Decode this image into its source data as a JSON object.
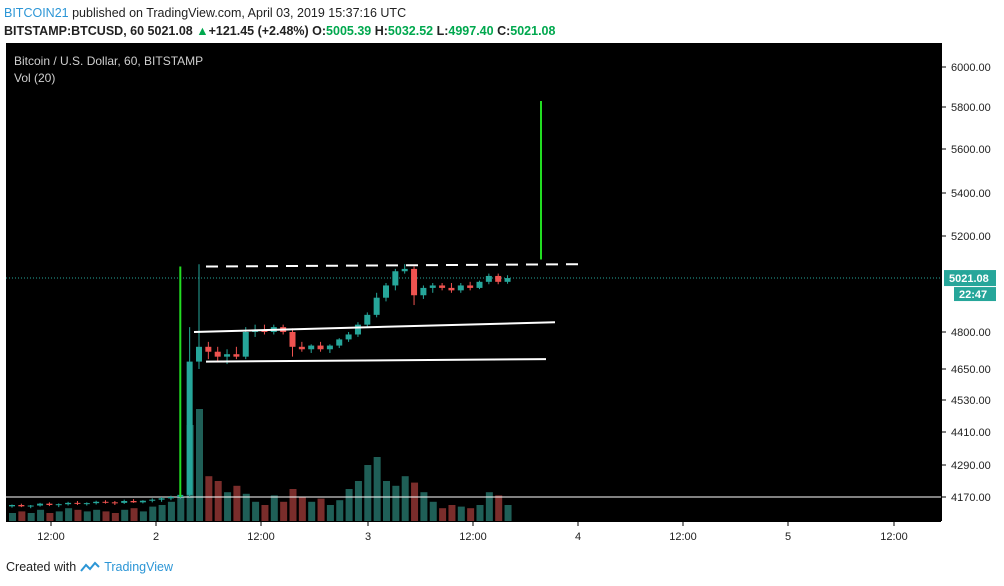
{
  "header": {
    "user": "BITCOIN21",
    "published": " published on TradingView.com, April 03, 2019 15:37:16 UTC",
    "symbol": "BITSTAMP:BTCUSD, 60",
    "last": "5021.08",
    "change": "+121.45 (+2.48%)",
    "open_label": "O:",
    "open": "5005.39",
    "high_label": "H:",
    "high": "5032.52",
    "low_label": "L:",
    "low": "4997.40",
    "close_label": "C:",
    "close": "5021.08"
  },
  "legend": {
    "title": "Bitcoin / U.S. Dollar, 60, BITSTAMP",
    "vol": "Vol (20)"
  },
  "price_badge": {
    "value": "5021.08",
    "countdown": "22:47"
  },
  "footer": {
    "created": "Created with",
    "brand": "TradingView"
  },
  "colors": {
    "up": "#26a69a",
    "down": "#ef5350",
    "vol_up": "#1f5f57",
    "vol_down": "#7a2d2b",
    "green_line": "#22dd22",
    "badge": "#26a69a"
  },
  "chart_data": {
    "type": "candlestick",
    "price_axis": {
      "ticks": [
        6000,
        5800,
        5600,
        5400,
        5200,
        5021.08,
        4800,
        4650,
        4530,
        4410,
        4290,
        4170
      ]
    },
    "time_axis": {
      "ticks": [
        "12:00",
        "2",
        "12:00",
        "3",
        "12:00",
        "4",
        "12:00",
        "5",
        "12:00"
      ]
    },
    "candles": [
      [
        4135,
        4142,
        4130,
        4140
      ],
      [
        4140,
        4145,
        4132,
        4135
      ],
      [
        4135,
        4140,
        4128,
        4138
      ],
      [
        4138,
        4148,
        4134,
        4145
      ],
      [
        4145,
        4150,
        4136,
        4140
      ],
      [
        4140,
        4146,
        4132,
        4143
      ],
      [
        4143,
        4152,
        4138,
        4148
      ],
      [
        4148,
        4155,
        4140,
        4145
      ],
      [
        4145,
        4150,
        4138,
        4147
      ],
      [
        4147,
        4156,
        4142,
        4152
      ],
      [
        4152,
        4158,
        4145,
        4150
      ],
      [
        4150,
        4155,
        4140,
        4148
      ],
      [
        4148,
        4160,
        4144,
        4155
      ],
      [
        4155,
        4162,
        4148,
        4150
      ],
      [
        4150,
        4158,
        4146,
        4156
      ],
      [
        4156,
        4165,
        4150,
        4160
      ],
      [
        4160,
        4170,
        4152,
        4165
      ],
      [
        4165,
        4175,
        4158,
        4170
      ],
      [
        4170,
        4182,
        4162,
        4178
      ],
      [
        4178,
        4820,
        4170,
        4680
      ],
      [
        4680,
        5080,
        4650,
        4740
      ],
      [
        4740,
        4760,
        4690,
        4720
      ],
      [
        4720,
        4740,
        4680,
        4700
      ],
      [
        4700,
        4730,
        4670,
        4710
      ],
      [
        4710,
        4740,
        4690,
        4700
      ],
      [
        4700,
        4820,
        4690,
        4800
      ],
      [
        4800,
        4830,
        4780,
        4810
      ],
      [
        4810,
        4830,
        4790,
        4800
      ],
      [
        4800,
        4830,
        4790,
        4820
      ],
      [
        4820,
        4830,
        4790,
        4800
      ],
      [
        4800,
        4815,
        4700,
        4740
      ],
      [
        4740,
        4760,
        4720,
        4730
      ],
      [
        4730,
        4750,
        4715,
        4745
      ],
      [
        4745,
        4760,
        4720,
        4730
      ],
      [
        4730,
        4750,
        4715,
        4745
      ],
      [
        4745,
        4775,
        4735,
        4770
      ],
      [
        4770,
        4800,
        4760,
        4790
      ],
      [
        4790,
        4840,
        4780,
        4830
      ],
      [
        4830,
        4880,
        4820,
        4870
      ],
      [
        4870,
        4960,
        4860,
        4940
      ],
      [
        4940,
        5000,
        4925,
        4990
      ],
      [
        4990,
        5060,
        4970,
        5050
      ],
      [
        5050,
        5080,
        5040,
        5060
      ],
      [
        5060,
        5070,
        4910,
        4950
      ],
      [
        4950,
        4990,
        4935,
        4980
      ],
      [
        4980,
        5000,
        4960,
        4990
      ],
      [
        4990,
        5000,
        4970,
        4980
      ],
      [
        4980,
        5000,
        4960,
        4970
      ],
      [
        4970,
        5000,
        4960,
        4990
      ],
      [
        4990,
        5005,
        4970,
        4980
      ],
      [
        4980,
        5010,
        4975,
        5005
      ],
      [
        5005,
        5040,
        4995,
        5030
      ],
      [
        5030,
        5040,
        4995,
        5005
      ],
      [
        5005,
        5033,
        4997,
        5021
      ]
    ],
    "volumes": [
      5,
      6,
      5,
      7,
      5,
      6,
      8,
      7,
      6,
      7,
      6,
      5,
      7,
      8,
      6,
      9,
      10,
      12,
      15,
      60,
      70,
      28,
      25,
      18,
      22,
      17,
      12,
      10,
      16,
      12,
      20,
      15,
      12,
      14,
      10,
      13,
      20,
      25,
      35,
      40,
      25,
      22,
      28,
      24,
      18,
      12,
      8,
      10,
      9,
      8,
      10,
      18,
      16,
      10
    ],
    "annotations": {
      "green_lines": [
        {
          "price_top": 5070,
          "price_bottom": 4170,
          "candle": 18
        },
        {
          "price_top": 5830,
          "price_bottom": 5100,
          "candle_x": 535
        }
      ],
      "white_lines": [
        {
          "from": [
            4800,
            188
          ],
          "to": [
            4840,
            549
          ],
          "style": "solid"
        },
        {
          "from": [
            4680,
            200
          ],
          "to": [
            4690,
            540
          ],
          "style": "solid"
        },
        {
          "from": [
            5070,
            200
          ],
          "to": [
            5080,
            577
          ],
          "style": "dashed"
        }
      ],
      "horizontal_line_price": 4170
    }
  }
}
